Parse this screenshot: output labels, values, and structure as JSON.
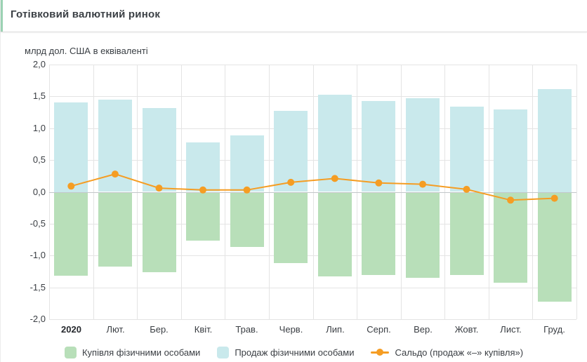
{
  "header": {
    "title": "Готівковий валютний ринок"
  },
  "colors": {
    "accent": "#9bd2b3",
    "purchase_bar": "#b8dfb9",
    "sales_bar": "#c9e9ec",
    "saldo_line": "#f59d23",
    "grid": "#e4e4e4"
  },
  "chart_data": {
    "type": "bar",
    "title": "Готівковий валютний ринок",
    "ylabel": "млрд дол. США в еквіваленті",
    "xlabel": "",
    "categories": [
      "2020",
      "Лют.",
      "Бер.",
      "Квіт.",
      "Трав.",
      "Черв.",
      "Лип.",
      "Серп.",
      "Вер.",
      "Жовт.",
      "Лист.",
      "Груд."
    ],
    "series": [
      {
        "name": "Купівля фізичними особами",
        "type": "bar",
        "color": "#b8dfb9",
        "values": [
          -1.32,
          -1.17,
          -1.26,
          -0.76,
          -0.86,
          -1.12,
          -1.33,
          -1.3,
          -1.35,
          -1.31,
          -1.43,
          -1.72
        ]
      },
      {
        "name": "Продаж фізичними особами",
        "type": "bar",
        "color": "#c9e9ec",
        "values": [
          1.41,
          1.45,
          1.32,
          0.78,
          0.89,
          1.27,
          1.53,
          1.43,
          1.47,
          1.34,
          1.3,
          1.62
        ]
      },
      {
        "name": "Сальдо (продаж «–» купівля»)",
        "type": "line",
        "color": "#f59d23",
        "values": [
          0.09,
          0.28,
          0.06,
          0.03,
          0.03,
          0.15,
          0.21,
          0.14,
          0.12,
          0.04,
          -0.13,
          -0.1
        ]
      }
    ],
    "ylim": [
      -2.0,
      2.0
    ],
    "ytick_step": 0.5,
    "grid": true,
    "legend_position": "bottom"
  }
}
